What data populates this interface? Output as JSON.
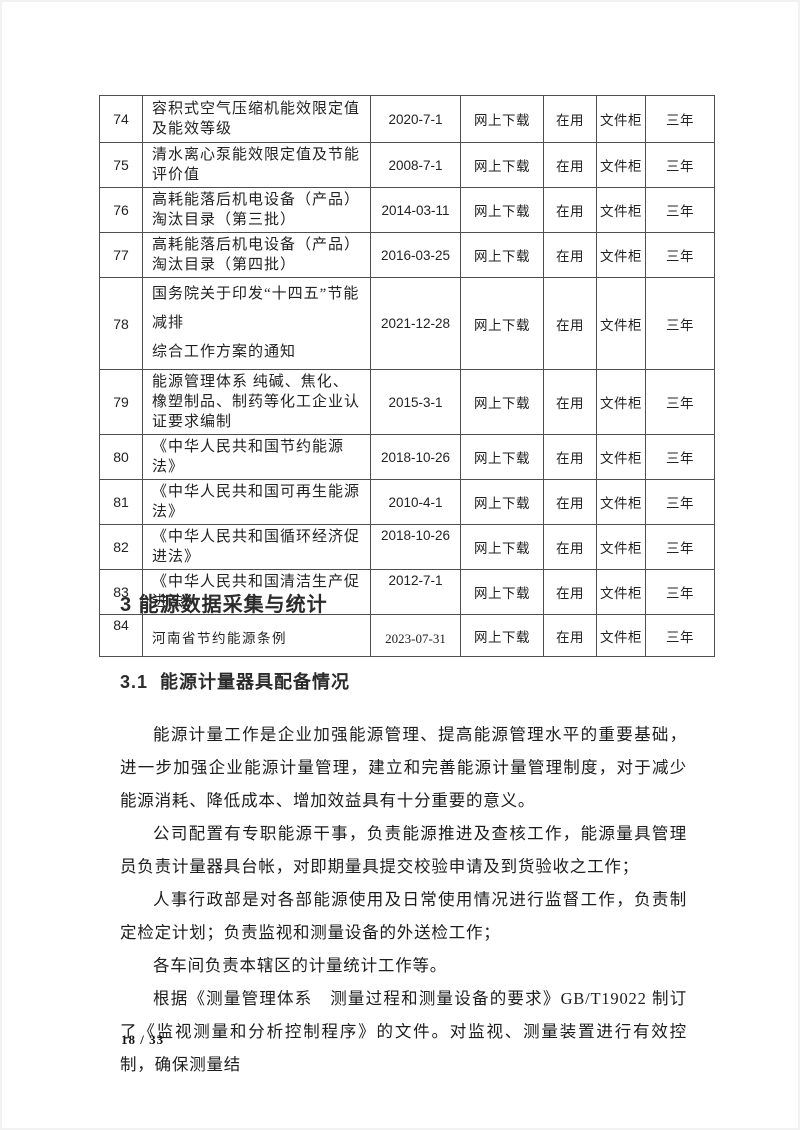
{
  "table": {
    "rows": [
      {
        "no": "74",
        "title": "容积式空气压缩机能效限定值及能效等级",
        "date": "2020-7-1",
        "source": "网上下载",
        "status": "在用",
        "location": "文件柜",
        "retention": "三年"
      },
      {
        "no": "75",
        "title": "清水离心泵能效限定值及节能评价值",
        "date": "2008-7-1",
        "source": "网上下载",
        "status": "在用",
        "location": "文件柜",
        "retention": "三年"
      },
      {
        "no": "76",
        "title": "高耗能落后机电设备（产品）淘汰目录（第三批）",
        "date": "2014-03-11",
        "source": "网上下载",
        "status": "在用",
        "location": "文件柜",
        "retention": "三年"
      },
      {
        "no": "77",
        "title": "高耗能落后机电设备（产品）淘汰目录（第四批）",
        "date": "2016-03-25",
        "source": "网上下载",
        "status": "在用",
        "location": "文件柜",
        "retention": "三年"
      },
      {
        "no": "78",
        "title": "国务院关于印发“十四五”节能减排\n综合工作方案的通知",
        "date": "2021-12-28",
        "source": "网上下载",
        "status": "在用",
        "location": "文件柜",
        "retention": "三年"
      },
      {
        "no": "79",
        "title": "能源管理体系 纯碱、焦化、橡塑制品、制药等化工企业认证要求编制",
        "date": "2015-3-1",
        "source": "网上下载",
        "status": "在用",
        "location": "文件柜",
        "retention": "三年"
      },
      {
        "no": "80",
        "title": "《中华人民共和国节约能源法》",
        "date": "2018-10-26",
        "source": "网上下载",
        "status": "在用",
        "location": "文件柜",
        "retention": "三年"
      },
      {
        "no": "81",
        "title": "《中华人民共和国可再生能源法》",
        "date": "2010-4-1",
        "source": "网上下载",
        "status": "在用",
        "location": "文件柜",
        "retention": "三年"
      },
      {
        "no": "82",
        "title": "《中华人民共和国循环经济促进法》",
        "date": "2018-10-26",
        "source": "网上下载",
        "status": "在用",
        "location": "文件柜",
        "retention": "三年"
      },
      {
        "no": "83",
        "title": "《中华人民共和国清洁生产促进法》",
        "date": "2012-7-1",
        "source": "网上下载",
        "status": "在用",
        "location": "文件柜",
        "retention": "三年"
      },
      {
        "no": "84",
        "title": "河南省节约能源条例",
        "date": "2023-07-31",
        "source": "网上下载",
        "status": "在用",
        "location": "文件柜",
        "retention": "三年"
      }
    ]
  },
  "sections": {
    "heading": "3 能源数据采集与统计",
    "subheading": "3.1  能源计量器具配备情况",
    "paragraphs": [
      "能源计量工作是企业加强能源管理、提高能源管理水平的重要基础，进一步加强企业能源计量管理，建立和完善能源计量管理制度，对于减少能源消耗、降低成本、增加效益具有十分重要的意义。",
      "公司配置有专职能源干事，负责能源推进及查核工作，能源量具管理员负责计量器具台帐，对即期量具提交校验申请及到货验收之工作；",
      "人事行政部是对各部能源使用及日常使用情况进行监督工作，负责制定检定计划；负责监视和测量设备的外送检工作；",
      "各车间负责本辖区的计量统计工作等。",
      "根据《测量管理体系　测量过程和测量设备的要求》GB/T19022 制订了《监视测量和分析控制程序》的文件。对监视、测量装置进行有效控制，确保测量结"
    ]
  },
  "footer": {
    "page_indicator": "18 / 33"
  }
}
